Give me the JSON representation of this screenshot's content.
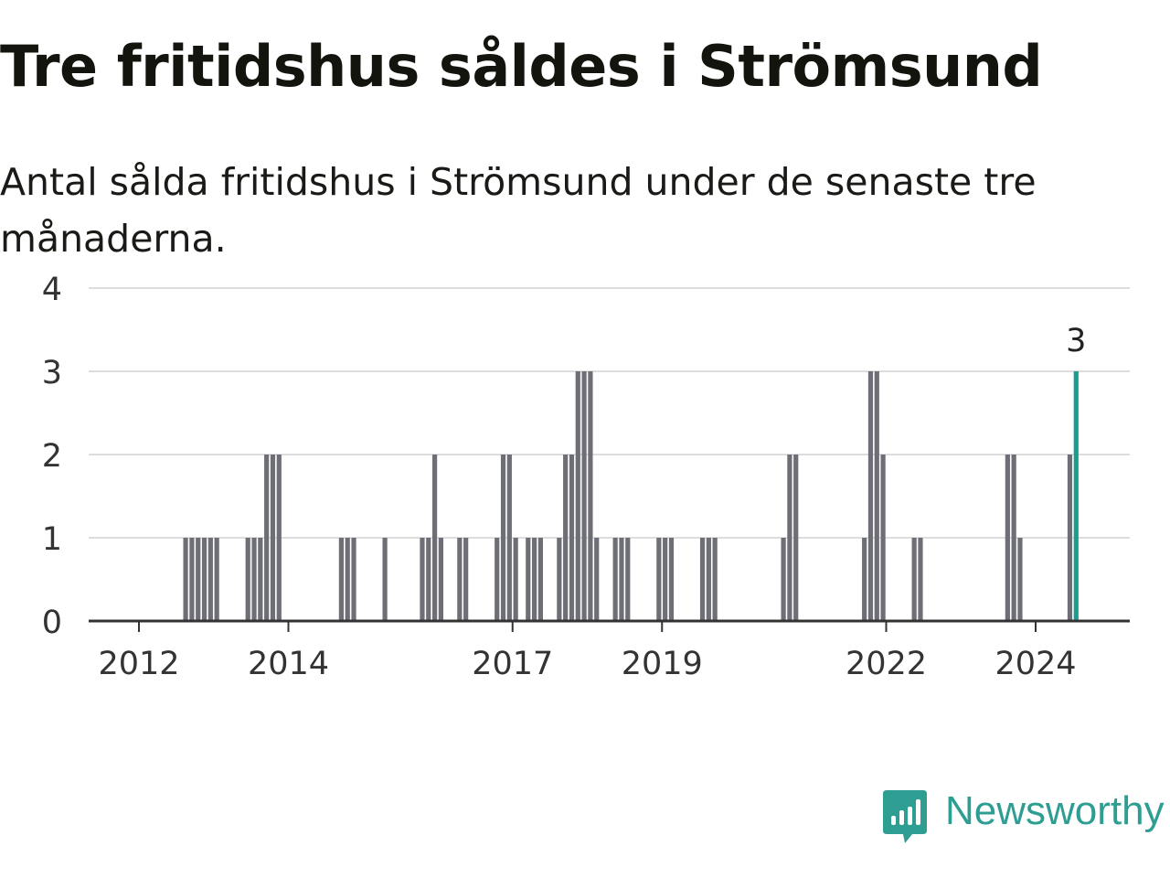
{
  "title": "Tre fritidshus såldes i Strömsund",
  "subtitle": "Antal sålda fritidshus i Strömsund under de senaste tre månaderna.",
  "brand": {
    "name": "Newsworthy",
    "color": "#2f9e92",
    "icon": "bar-chart-speech-bubble-icon"
  },
  "colors": {
    "bar": "#6e6e76",
    "highlight": "#1a9e92",
    "grid": "#dddddd",
    "axis": "#333333"
  },
  "chart_data": {
    "type": "bar",
    "title": "Tre fritidshus såldes i Strömsund",
    "subtitle": "Antal sålda fritidshus i Strömsund under de senaste tre månaderna.",
    "xlabel": "",
    "ylabel": "",
    "ylim": [
      0,
      4
    ],
    "y_ticks": [
      0,
      1,
      2,
      3,
      4
    ],
    "x_tick_labels": [
      {
        "label": "2012",
        "year": 2012.0
      },
      {
        "label": "2014",
        "year": 2014.0
      },
      {
        "label": "2017",
        "year": 2017.0
      },
      {
        "label": "2019",
        "year": 2019.0
      },
      {
        "label": "2022",
        "year": 2022.0
      },
      {
        "label": "2024",
        "year": 2024.0
      }
    ],
    "grid": true,
    "legend": "none",
    "bars": [
      {
        "date": "2012-08",
        "value": 1
      },
      {
        "date": "2012-09",
        "value": 1
      },
      {
        "date": "2012-10",
        "value": 1
      },
      {
        "date": "2012-11",
        "value": 1
      },
      {
        "date": "2012-12",
        "value": 1
      },
      {
        "date": "2013-01",
        "value": 1
      },
      {
        "date": "2013-06",
        "value": 1
      },
      {
        "date": "2013-07",
        "value": 1
      },
      {
        "date": "2013-08",
        "value": 1
      },
      {
        "date": "2013-09",
        "value": 2
      },
      {
        "date": "2013-10",
        "value": 2
      },
      {
        "date": "2013-11",
        "value": 2
      },
      {
        "date": "2014-09",
        "value": 1
      },
      {
        "date": "2014-10",
        "value": 1
      },
      {
        "date": "2014-11",
        "value": 1
      },
      {
        "date": "2015-04",
        "value": 1
      },
      {
        "date": "2015-10",
        "value": 1
      },
      {
        "date": "2015-11",
        "value": 1
      },
      {
        "date": "2015-12",
        "value": 2
      },
      {
        "date": "2016-01",
        "value": 1
      },
      {
        "date": "2016-04",
        "value": 1
      },
      {
        "date": "2016-05",
        "value": 1
      },
      {
        "date": "2016-10",
        "value": 1
      },
      {
        "date": "2016-11",
        "value": 2
      },
      {
        "date": "2016-12",
        "value": 2
      },
      {
        "date": "2017-01",
        "value": 1
      },
      {
        "date": "2017-03",
        "value": 1
      },
      {
        "date": "2017-04",
        "value": 1
      },
      {
        "date": "2017-05",
        "value": 1
      },
      {
        "date": "2017-08",
        "value": 1
      },
      {
        "date": "2017-09",
        "value": 2
      },
      {
        "date": "2017-10",
        "value": 2
      },
      {
        "date": "2017-11",
        "value": 3
      },
      {
        "date": "2017-12",
        "value": 3
      },
      {
        "date": "2018-01",
        "value": 3
      },
      {
        "date": "2018-02",
        "value": 1
      },
      {
        "date": "2018-05",
        "value": 1
      },
      {
        "date": "2018-06",
        "value": 1
      },
      {
        "date": "2018-07",
        "value": 1
      },
      {
        "date": "2018-12",
        "value": 1
      },
      {
        "date": "2019-01",
        "value": 1
      },
      {
        "date": "2019-02",
        "value": 1
      },
      {
        "date": "2019-07",
        "value": 1
      },
      {
        "date": "2019-08",
        "value": 1
      },
      {
        "date": "2019-09",
        "value": 1
      },
      {
        "date": "2020-08",
        "value": 1
      },
      {
        "date": "2020-09",
        "value": 2
      },
      {
        "date": "2020-10",
        "value": 2
      },
      {
        "date": "2021-09",
        "value": 1
      },
      {
        "date": "2021-10",
        "value": 3
      },
      {
        "date": "2021-11",
        "value": 3
      },
      {
        "date": "2021-12",
        "value": 2
      },
      {
        "date": "2022-05",
        "value": 1
      },
      {
        "date": "2022-06",
        "value": 1
      },
      {
        "date": "2023-08",
        "value": 2
      },
      {
        "date": "2023-09",
        "value": 2
      },
      {
        "date": "2023-10",
        "value": 1
      },
      {
        "date": "2024-06",
        "value": 2
      },
      {
        "date": "2024-07",
        "value": 3,
        "highlight": true,
        "label": "3"
      }
    ]
  }
}
